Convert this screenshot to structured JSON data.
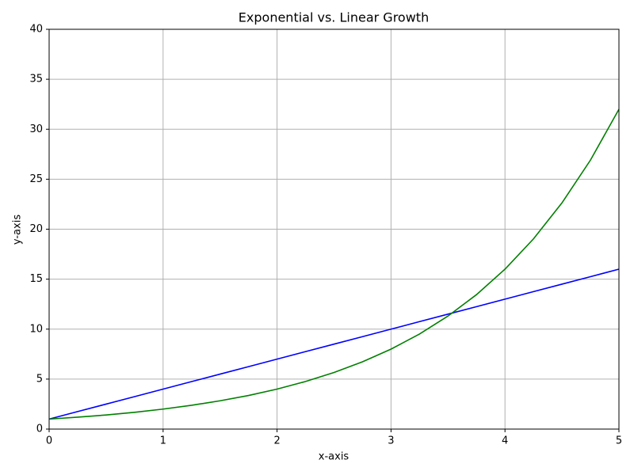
{
  "chart_data": {
    "type": "line",
    "title": "Exponential vs. Linear Growth",
    "x_label": "x-axis",
    "y_label": "y-axis",
    "x": [
      0,
      0.25,
      0.5,
      0.75,
      1,
      1.25,
      1.5,
      1.75,
      2,
      2.25,
      2.5,
      2.75,
      3,
      3.25,
      3.5,
      3.75,
      4,
      4.25,
      4.5,
      4.75,
      5
    ],
    "series": [
      {
        "color": "#0000ff",
        "values": [
          1,
          1.75,
          2.5,
          3.25,
          4,
          4.75,
          5.5,
          6.25,
          7,
          7.75,
          8.5,
          9.25,
          10,
          10.75,
          11.5,
          12.25,
          13,
          13.75,
          14.5,
          15.25,
          16
        ]
      },
      {
        "color": "#008000",
        "values": [
          1,
          1.19,
          1.41,
          1.68,
          2,
          2.38,
          2.83,
          3.36,
          4,
          4.76,
          5.66,
          6.73,
          8,
          9.51,
          11.31,
          13.45,
          16,
          19.03,
          22.63,
          26.91,
          32
        ]
      }
    ],
    "xlim": [
      0,
      5
    ],
    "xticks": [
      0,
      1,
      2,
      3,
      4,
      5
    ],
    "ylim": [
      0,
      40
    ],
    "yticks": [
      0,
      5,
      10,
      15,
      20,
      25,
      30,
      35,
      40
    ],
    "grid": true
  }
}
